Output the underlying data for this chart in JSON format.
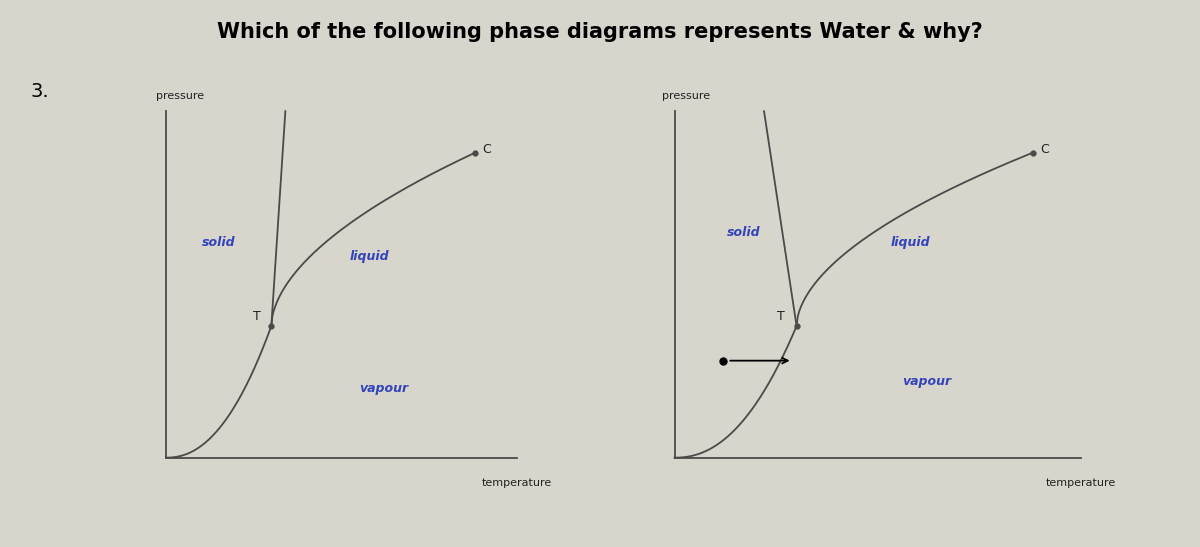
{
  "title": "Which of the following phase diagrams represents Water & why?",
  "title_fontsize": 15,
  "title_fontweight": "bold",
  "question_number": "3.",
  "background_color": "#d8d5cc",
  "text_color": "#3344bb",
  "line_color": "#4a4a4a",
  "axis_label_color": "#222222",
  "left_diagram": {
    "pressure_label": "pressure",
    "temp_label": "temperature",
    "solid_label": "solid",
    "liquid_label": "liquid",
    "vapour_label": "vapour",
    "C_label": "C",
    "T_label": "T"
  },
  "right_diagram": {
    "pressure_label": "pressure",
    "temp_label": "temperature",
    "solid_label": "solid",
    "liquid_label": "liquid",
    "vapour_label": "vapour",
    "C_label": "C",
    "T_label": "T"
  }
}
